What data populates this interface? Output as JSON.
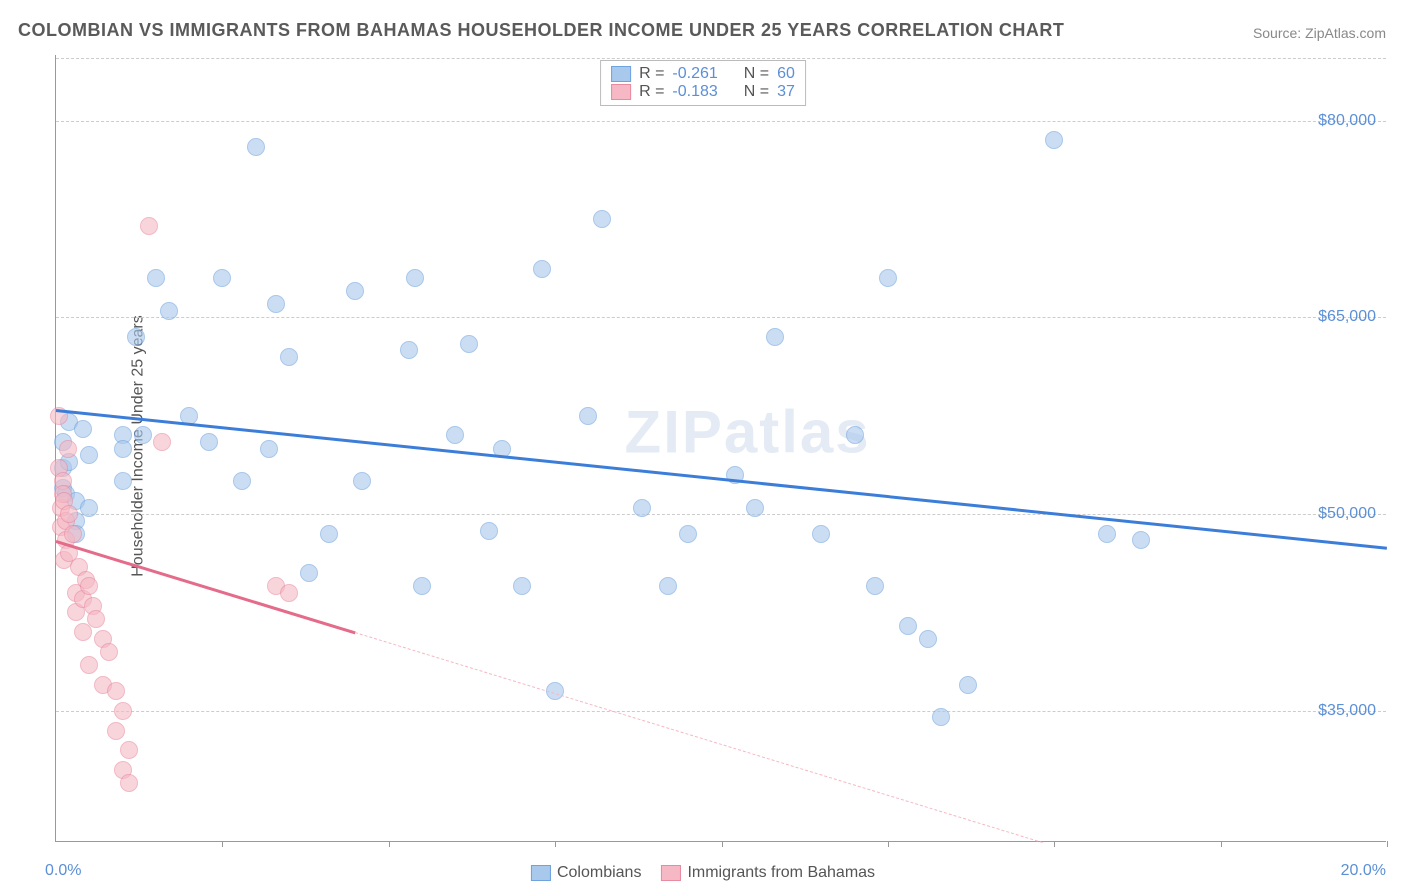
{
  "title": "COLOMBIAN VS IMMIGRANTS FROM BAHAMAS HOUSEHOLDER INCOME UNDER 25 YEARS CORRELATION CHART",
  "source_prefix": "Source: ",
  "source_name": "ZipAtlas.com",
  "watermark": "ZIPatlas",
  "chart": {
    "type": "scatter",
    "background_color": "#ffffff",
    "grid_color": "#cccccc",
    "axis_color": "#999999",
    "xlim": [
      0,
      20
    ],
    "ylim": [
      25000,
      85000
    ],
    "xaxis": {
      "label_left": "0.0%",
      "label_right": "20.0%",
      "ticks": [
        2.5,
        5,
        7.5,
        10,
        12.5,
        15,
        17.5,
        20
      ],
      "label_color": "#5b8fd6"
    },
    "yaxis": {
      "title": "Householder Income Under 25 years",
      "ticks": [
        35000,
        50000,
        65000,
        80000
      ],
      "tick_labels": [
        "$35,000",
        "$50,000",
        "$65,000",
        "$80,000"
      ],
      "label_color": "#5b8fd6",
      "title_color": "#555555",
      "title_fontsize": 16
    },
    "series": [
      {
        "name": "Colombians",
        "fill_color": "#a8c8ec",
        "stroke_color": "#6fa3de",
        "line_color": "#3b7dd8",
        "marker_size": 18,
        "R": "-0.261",
        "N": "60",
        "trend": {
          "x1": 0,
          "y1": 58000,
          "x2": 20,
          "y2": 47500,
          "dashed_from": null
        },
        "points": [
          [
            0.1,
            55500
          ],
          [
            0.1,
            53500
          ],
          [
            0.1,
            52000
          ],
          [
            0.15,
            51500
          ],
          [
            0.2,
            57000
          ],
          [
            0.2,
            54000
          ],
          [
            0.3,
            51000
          ],
          [
            0.3,
            49500
          ],
          [
            0.3,
            48500
          ],
          [
            0.4,
            56500
          ],
          [
            0.5,
            50500
          ],
          [
            0.5,
            54500
          ],
          [
            1.0,
            56000
          ],
          [
            1.0,
            52500
          ],
          [
            1.0,
            55000
          ],
          [
            1.2,
            63500
          ],
          [
            1.3,
            56000
          ],
          [
            1.5,
            68000
          ],
          [
            1.7,
            65500
          ],
          [
            2.0,
            57500
          ],
          [
            2.3,
            55500
          ],
          [
            2.5,
            68000
          ],
          [
            2.8,
            52500
          ],
          [
            3.0,
            78000
          ],
          [
            3.2,
            55000
          ],
          [
            3.3,
            66000
          ],
          [
            3.5,
            62000
          ],
          [
            3.8,
            45500
          ],
          [
            4.1,
            48500
          ],
          [
            4.5,
            67000
          ],
          [
            4.6,
            52500
          ],
          [
            5.3,
            62500
          ],
          [
            5.4,
            68000
          ],
          [
            5.5,
            44500
          ],
          [
            6.0,
            56000
          ],
          [
            6.2,
            63000
          ],
          [
            6.5,
            48700
          ],
          [
            6.7,
            55000
          ],
          [
            7.0,
            44500
          ],
          [
            7.3,
            68700
          ],
          [
            7.5,
            36500
          ],
          [
            8.0,
            57500
          ],
          [
            8.2,
            72500
          ],
          [
            8.8,
            50500
          ],
          [
            9.2,
            44500
          ],
          [
            9.5,
            48500
          ],
          [
            10.2,
            53000
          ],
          [
            10.5,
            50500
          ],
          [
            10.8,
            63500
          ],
          [
            11.5,
            48500
          ],
          [
            12.0,
            56000
          ],
          [
            12.3,
            44500
          ],
          [
            12.5,
            68000
          ],
          [
            12.8,
            41500
          ],
          [
            13.1,
            40500
          ],
          [
            13.3,
            34500
          ],
          [
            13.7,
            37000
          ],
          [
            15.0,
            78500
          ],
          [
            15.8,
            48500
          ],
          [
            16.3,
            48000
          ]
        ]
      },
      {
        "name": "Immigrants from Bahamas",
        "fill_color": "#f5b8c4",
        "stroke_color": "#e88aa0",
        "line_color": "#e56b8a",
        "marker_size": 18,
        "R": "-0.183",
        "N": "37",
        "trend": {
          "x1": 0,
          "y1": 48000,
          "x2": 20,
          "y2": 17000,
          "dashed_from": 4.5
        },
        "points": [
          [
            0.05,
            57500
          ],
          [
            0.05,
            53500
          ],
          [
            0.08,
            50500
          ],
          [
            0.08,
            49000
          ],
          [
            0.1,
            52500
          ],
          [
            0.1,
            51500
          ],
          [
            0.12,
            51000
          ],
          [
            0.12,
            46500
          ],
          [
            0.15,
            49500
          ],
          [
            0.15,
            48000
          ],
          [
            0.18,
            55000
          ],
          [
            0.2,
            50000
          ],
          [
            0.2,
            47000
          ],
          [
            0.25,
            48500
          ],
          [
            0.3,
            44000
          ],
          [
            0.3,
            42500
          ],
          [
            0.35,
            46000
          ],
          [
            0.4,
            43500
          ],
          [
            0.4,
            41000
          ],
          [
            0.45,
            45000
          ],
          [
            0.5,
            44500
          ],
          [
            0.5,
            38500
          ],
          [
            0.55,
            43000
          ],
          [
            0.6,
            42000
          ],
          [
            0.7,
            37000
          ],
          [
            0.7,
            40500
          ],
          [
            0.8,
            39500
          ],
          [
            0.9,
            33500
          ],
          [
            0.9,
            36500
          ],
          [
            1.0,
            35000
          ],
          [
            1.0,
            30500
          ],
          [
            1.1,
            32000
          ],
          [
            1.1,
            29500
          ],
          [
            1.4,
            72000
          ],
          [
            1.6,
            55500
          ],
          [
            3.3,
            44500
          ],
          [
            3.5,
            44000
          ]
        ]
      }
    ]
  },
  "legend_top": {
    "R_label": "R =",
    "N_label": "N ="
  },
  "legend_bottom": {
    "items": [
      "Colombians",
      "Immigrants from Bahamas"
    ]
  }
}
